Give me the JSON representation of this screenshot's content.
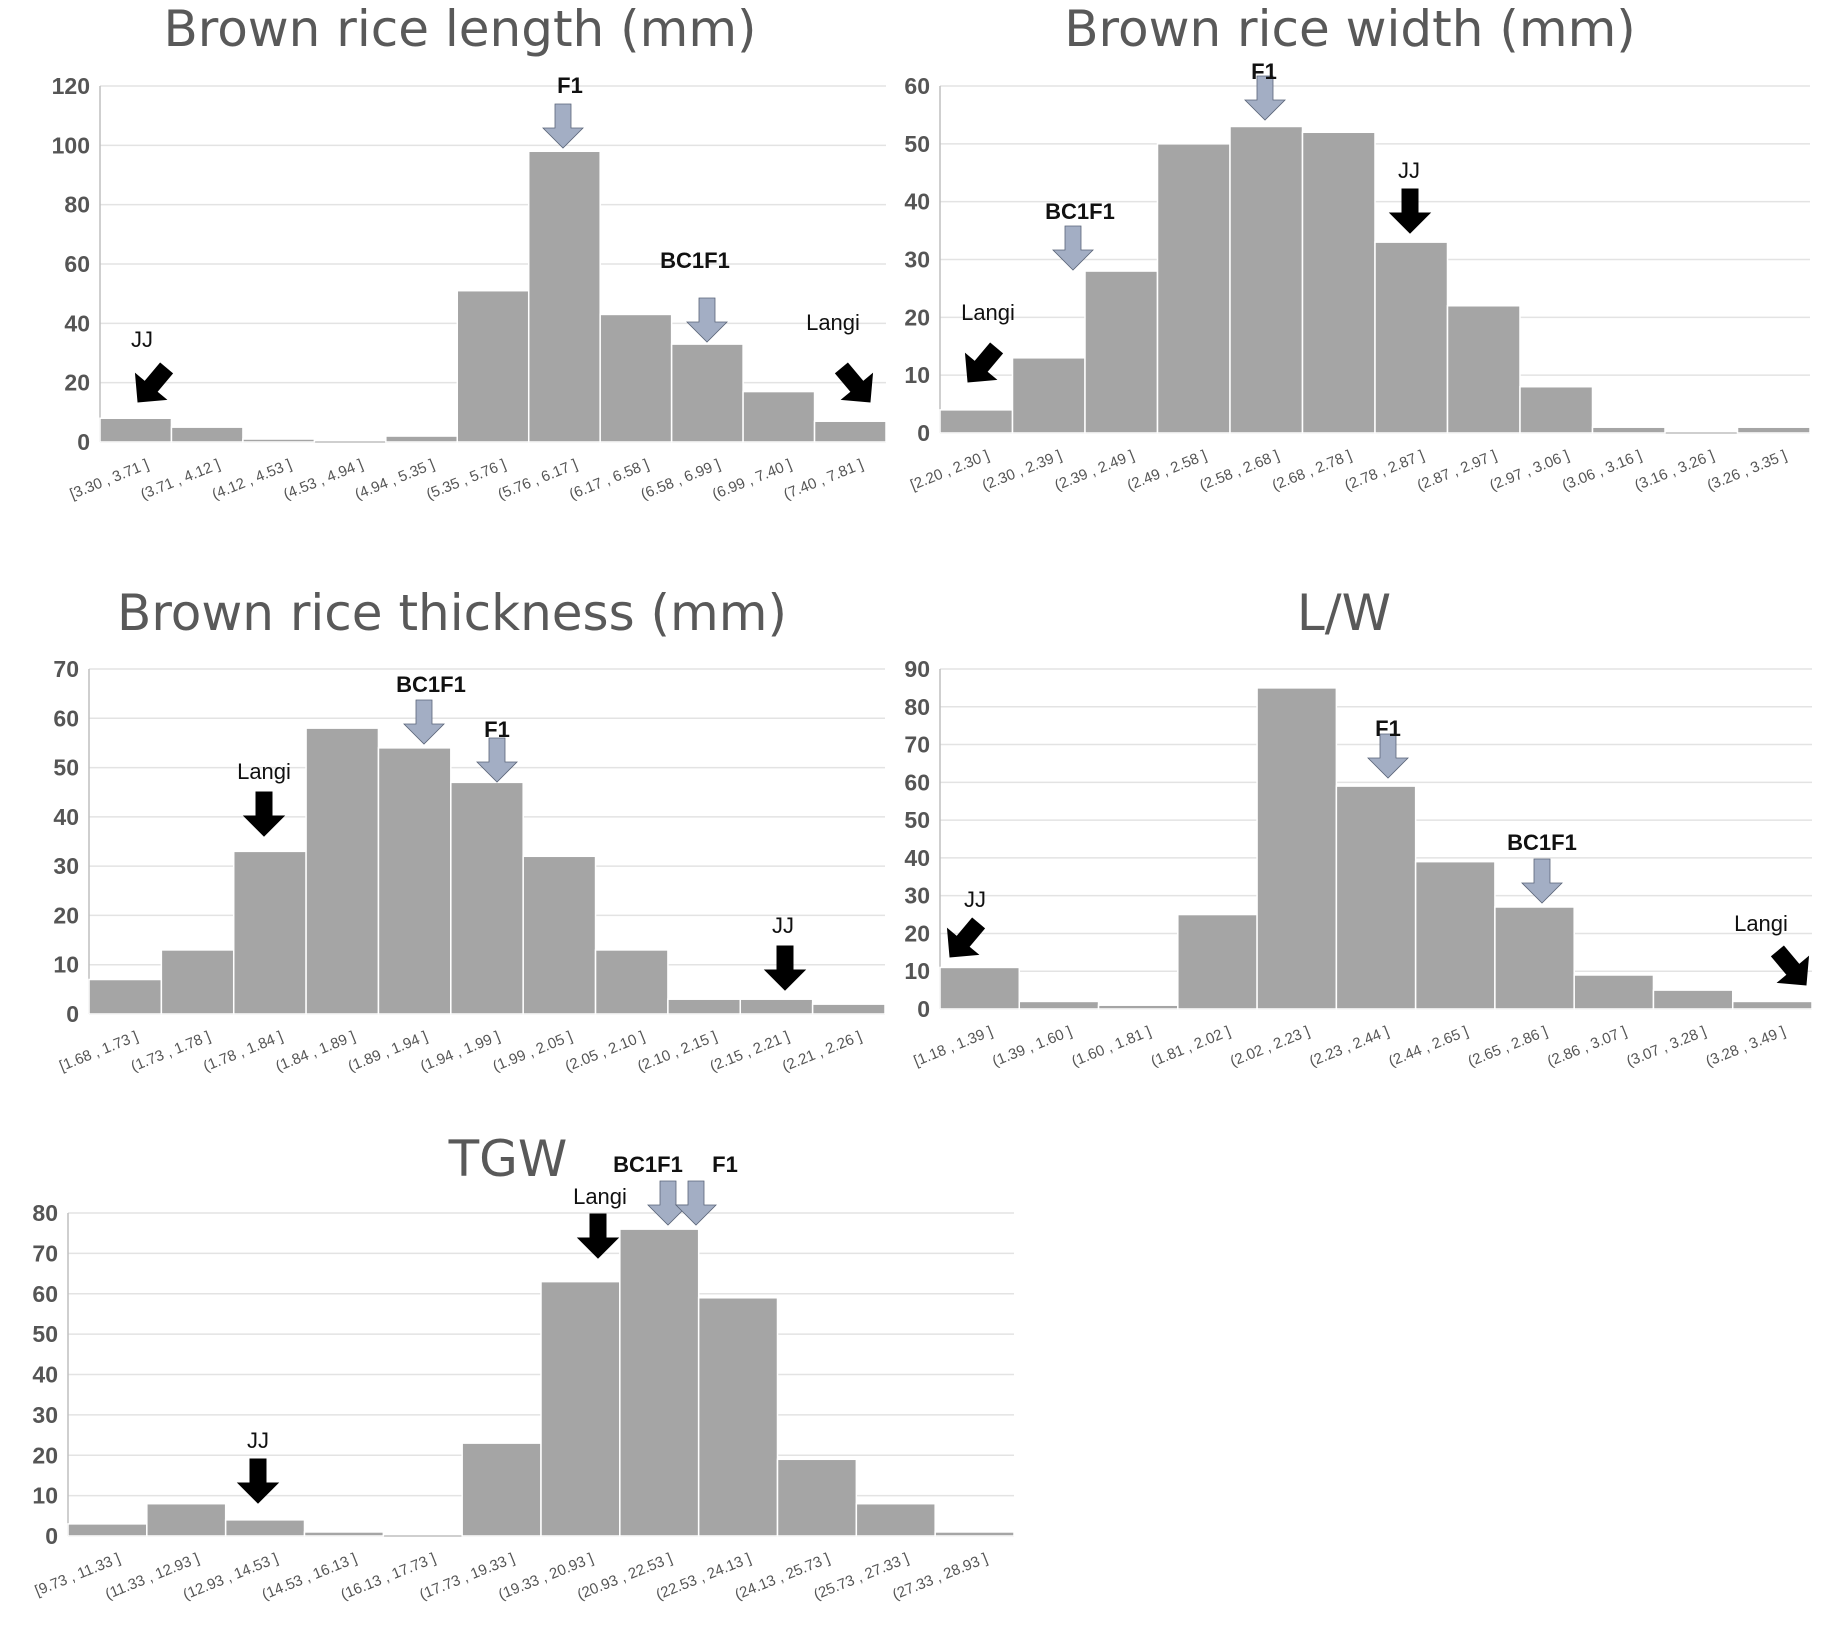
{
  "figure_colors": {
    "bar": "#a5a5a5",
    "bar_edge": "#ffffff",
    "grid": "#e3e3e3",
    "axis": "#bfbfbf",
    "text": "#555555",
    "title": "#595959",
    "arrow_parent": "#000000",
    "arrow_progeny": "#a3aec4",
    "arrow_progeny_edge": "#5a6478"
  },
  "chart_data": [
    {
      "type": "bar",
      "title": "Brown rice length (mm)",
      "categories": [
        "[3.30 , 3.71 ]",
        "(3.71 , 4.12 ]",
        "(4.12 , 4.53 ]",
        "(4.53 , 4.94 ]",
        "(4.94 , 5.35 ]",
        "(5.35 , 5.76 ]",
        "(5.76 , 6.17 ]",
        "(6.17 , 6.58 ]",
        "(6.58 , 6.99 ]",
        "(6.99 , 7.40 ]",
        "(7.40 , 7.81 ]"
      ],
      "values": [
        8,
        5,
        1,
        0,
        2,
        51,
        98,
        43,
        33,
        17,
        7
      ],
      "ylim": [
        0,
        120
      ],
      "yticks": [
        0,
        20,
        40,
        60,
        80,
        100,
        120
      ],
      "grid": true,
      "markers": [
        {
          "label": "JJ",
          "kind": "parent",
          "bin": 0
        },
        {
          "label": "F1",
          "kind": "progeny",
          "bin": 6
        },
        {
          "label": "BC1F1",
          "kind": "progeny",
          "bin": 8
        },
        {
          "label": "Langi",
          "kind": "parent",
          "bin": 10
        }
      ]
    },
    {
      "type": "bar",
      "title": "Brown rice width (mm)",
      "categories": [
        "[2.20 , 2.30 ]",
        "(2.30 , 2.39 ]",
        "(2.39 , 2.49 ]",
        "(2.49 , 2.58 ]",
        "(2.58 , 2.68 ]",
        "(2.68 , 2.78 ]",
        "(2.78 , 2.87 ]",
        "(2.87 , 2.97 ]",
        "(2.97 , 3.06 ]",
        "(3.06 , 3.16 ]",
        "(3.16 , 3.26 ]",
        "(3.26 , 3.35 ]"
      ],
      "values": [
        4,
        13,
        28,
        50,
        53,
        52,
        33,
        22,
        8,
        1,
        0,
        1
      ],
      "ylim": [
        0,
        60
      ],
      "yticks": [
        0,
        10,
        20,
        30,
        40,
        50,
        60
      ],
      "grid": true,
      "markers": [
        {
          "label": "Langi",
          "kind": "parent",
          "bin": 0
        },
        {
          "label": "BC1F1",
          "kind": "progeny",
          "bin": 2
        },
        {
          "label": "F1",
          "kind": "progeny",
          "bin": 4
        },
        {
          "label": "JJ",
          "kind": "parent",
          "bin": 6
        }
      ]
    },
    {
      "type": "bar",
      "title": "Brown rice thickness (mm)",
      "categories": [
        "[1.68 , 1.73 ]",
        "(1.73 , 1.78 ]",
        "(1.78 , 1.84 ]",
        "(1.84 , 1.89 ]",
        "(1.89 , 1.94 ]",
        "(1.94 , 1.99 ]",
        "(1.99 , 2.05 ]",
        "(2.05 , 2.10 ]",
        "(2.10 , 2.15 ]",
        "(2.15 , 2.21 ]",
        "(2.21 , 2.26 ]"
      ],
      "values": [
        7,
        13,
        33,
        58,
        54,
        47,
        32,
        13,
        3,
        3,
        2
      ],
      "ylim": [
        0,
        70
      ],
      "yticks": [
        0,
        10,
        20,
        30,
        40,
        50,
        60,
        70
      ],
      "grid": true,
      "markers": [
        {
          "label": "Langi",
          "kind": "parent",
          "bin": 2
        },
        {
          "label": "BC1F1",
          "kind": "progeny",
          "bin": 4
        },
        {
          "label": "F1",
          "kind": "progeny",
          "bin": 5
        },
        {
          "label": "JJ",
          "kind": "parent",
          "bin": 9
        }
      ]
    },
    {
      "type": "bar",
      "title": "L/W",
      "categories": [
        "[1.18 , 1.39 ]",
        "(1.39 , 1.60 ]",
        "(1.60 , 1.81 ]",
        "(1.81 , 2.02 ]",
        "(2.02 , 2.23 ]",
        "(2.23 , 2.44 ]",
        "(2.44 , 2.65 ]",
        "(2.65 , 2.86 ]",
        "(2.86 , 3.07 ]",
        "(3.07 , 3.28 ]",
        "(3.28 , 3.49 ]"
      ],
      "values": [
        11,
        2,
        1,
        25,
        85,
        59,
        39,
        27,
        9,
        5,
        2
      ],
      "ylim": [
        0,
        90
      ],
      "yticks": [
        0,
        10,
        20,
        30,
        40,
        50,
        60,
        70,
        80,
        90
      ],
      "grid": true,
      "markers": [
        {
          "label": "JJ",
          "kind": "parent",
          "bin": 0
        },
        {
          "label": "F1",
          "kind": "progeny",
          "bin": 5
        },
        {
          "label": "BC1F1",
          "kind": "progeny",
          "bin": 7
        },
        {
          "label": "Langi",
          "kind": "parent",
          "bin": 10
        }
      ]
    },
    {
      "type": "bar",
      "title": "TGW",
      "categories": [
        "[9.73 , 11.33 ]",
        "(11.33 , 12.93 ]",
        "(12.93 , 14.53 ]",
        "(14.53 , 16.13 ]",
        "(16.13 , 17.73 ]",
        "(17.73 , 19.33 ]",
        "(19.33 , 20.93 ]",
        "(20.93 , 22.53 ]",
        "(22.53 , 24.13 ]",
        "(24.13 , 25.73 ]",
        "(25.73 , 27.33 ]",
        "(27.33 , 28.93 ]"
      ],
      "values": [
        3,
        8,
        4,
        1,
        0,
        23,
        63,
        76,
        59,
        19,
        8,
        1
      ],
      "ylim": [
        0,
        80
      ],
      "yticks": [
        0,
        10,
        20,
        30,
        40,
        50,
        60,
        70,
        80
      ],
      "grid": true,
      "markers": [
        {
          "label": "JJ",
          "kind": "parent",
          "bin": 2
        },
        {
          "label": "Langi",
          "kind": "parent",
          "bin": 6
        },
        {
          "label": "BC1F1",
          "kind": "progeny",
          "bin": 7
        },
        {
          "label": "F1",
          "kind": "progeny",
          "bin": 8
        }
      ]
    }
  ]
}
